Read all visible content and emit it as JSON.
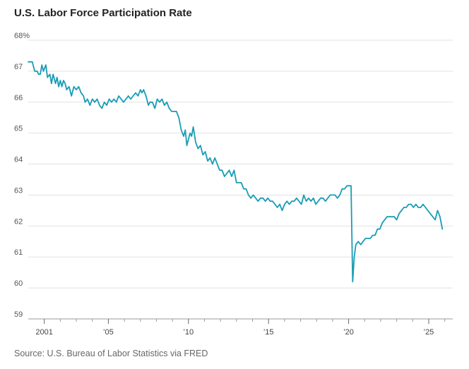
{
  "chart_data": {
    "type": "line",
    "title": "U.S. Labor Force Participation Rate",
    "source": "Source: U.S. Bureau of Labor Statistics via FRED",
    "ylim": [
      59,
      68
    ],
    "xlim": [
      2000.0,
      2026.5
    ],
    "y_ticks": [
      59,
      60,
      61,
      62,
      63,
      64,
      65,
      66,
      67,
      68
    ],
    "y_tick_labels": [
      "59",
      "60",
      "61",
      "62",
      "63",
      "64",
      "65",
      "66",
      "67",
      "68%"
    ],
    "x_ticks": [
      2001,
      2005,
      2010,
      2015,
      2020,
      2025
    ],
    "x_tick_labels": [
      "2001",
      "’05",
      "’10",
      "’15",
      "’20",
      "’25"
    ],
    "x_minor_ticks": [
      2002,
      2003,
      2004,
      2006,
      2007,
      2008,
      2009,
      2011,
      2012,
      2013,
      2014,
      2016,
      2017,
      2018,
      2019,
      2021,
      2022,
      2023,
      2024,
      2026
    ],
    "line_color": "#199cb5",
    "series": [
      {
        "name": "Labor force participation rate",
        "x": [
          2000.0,
          2000.25,
          2000.4,
          2000.55,
          2000.65,
          2000.75,
          2000.85,
          2000.95,
          2001.1,
          2001.2,
          2001.35,
          2001.45,
          2001.55,
          2001.7,
          2001.8,
          2001.9,
          2002.0,
          2002.1,
          2002.2,
          2002.3,
          2002.4,
          2002.55,
          2002.7,
          2002.85,
          2003.0,
          2003.15,
          2003.3,
          2003.45,
          2003.55,
          2003.7,
          2003.85,
          2004.0,
          2004.15,
          2004.3,
          2004.45,
          2004.6,
          2004.75,
          2004.9,
          2005.05,
          2005.2,
          2005.35,
          2005.5,
          2005.65,
          2005.8,
          2005.95,
          2006.1,
          2006.25,
          2006.4,
          2006.55,
          2006.7,
          2006.85,
          2007.0,
          2007.1,
          2007.2,
          2007.35,
          2007.5,
          2007.6,
          2007.75,
          2007.9,
          2008.05,
          2008.2,
          2008.35,
          2008.5,
          2008.65,
          2008.8,
          2008.95,
          2009.1,
          2009.25,
          2009.4,
          2009.55,
          2009.7,
          2009.8,
          2009.9,
          2010.0,
          2010.1,
          2010.2,
          2010.3,
          2010.45,
          2010.6,
          2010.75,
          2010.9,
          2011.05,
          2011.2,
          2011.35,
          2011.5,
          2011.65,
          2011.8,
          2011.95,
          2012.1,
          2012.25,
          2012.4,
          2012.55,
          2012.7,
          2012.85,
          2013.0,
          2013.15,
          2013.3,
          2013.45,
          2013.6,
          2013.75,
          2013.9,
          2014.05,
          2014.2,
          2014.35,
          2014.5,
          2014.65,
          2014.8,
          2014.95,
          2015.1,
          2015.25,
          2015.4,
          2015.55,
          2015.7,
          2015.85,
          2016.0,
          2016.15,
          2016.3,
          2016.45,
          2016.6,
          2016.75,
          2016.9,
          2017.05,
          2017.2,
          2017.35,
          2017.5,
          2017.65,
          2017.8,
          2017.95,
          2018.1,
          2018.25,
          2018.4,
          2018.55,
          2018.7,
          2018.85,
          2019.0,
          2019.15,
          2019.3,
          2019.45,
          2019.6,
          2019.75,
          2019.9,
          2020.05,
          2020.15,
          2020.25,
          2020.35,
          2020.45,
          2020.6,
          2020.75,
          2020.9,
          2021.05,
          2021.2,
          2021.35,
          2021.5,
          2021.65,
          2021.8,
          2021.95,
          2022.1,
          2022.25,
          2022.4,
          2022.55,
          2022.7,
          2022.85,
          2023.0,
          2023.15,
          2023.3,
          2023.45,
          2023.6,
          2023.75,
          2023.9,
          2024.05,
          2024.2,
          2024.35,
          2024.5,
          2024.65,
          2024.8,
          2024.95,
          2025.1,
          2025.25,
          2025.4,
          2025.55,
          2025.7,
          2025.85
        ],
        "values": [
          67.3,
          67.3,
          67.0,
          67.0,
          66.9,
          66.9,
          67.2,
          67.0,
          67.2,
          66.8,
          66.9,
          66.6,
          66.9,
          66.6,
          66.8,
          66.5,
          66.7,
          66.5,
          66.7,
          66.6,
          66.4,
          66.5,
          66.2,
          66.5,
          66.4,
          66.5,
          66.3,
          66.2,
          66.0,
          66.1,
          65.9,
          66.1,
          66.0,
          66.1,
          65.9,
          65.8,
          66.0,
          65.9,
          66.1,
          66.0,
          66.1,
          66.0,
          66.2,
          66.1,
          66.0,
          66.1,
          66.2,
          66.1,
          66.2,
          66.3,
          66.2,
          66.4,
          66.3,
          66.4,
          66.2,
          65.9,
          66.0,
          66.0,
          65.8,
          66.1,
          66.0,
          66.1,
          65.9,
          66.0,
          65.8,
          65.7,
          65.7,
          65.7,
          65.5,
          65.1,
          64.9,
          65.1,
          64.6,
          64.8,
          65.0,
          64.9,
          65.2,
          64.7,
          64.5,
          64.6,
          64.3,
          64.4,
          64.1,
          64.2,
          64.0,
          64.2,
          64.0,
          63.8,
          63.8,
          63.6,
          63.7,
          63.8,
          63.6,
          63.8,
          63.4,
          63.4,
          63.4,
          63.2,
          63.2,
          63.0,
          62.9,
          63.0,
          62.9,
          62.8,
          62.9,
          62.9,
          62.8,
          62.9,
          62.8,
          62.8,
          62.7,
          62.6,
          62.7,
          62.5,
          62.7,
          62.8,
          62.7,
          62.8,
          62.8,
          62.9,
          62.8,
          62.7,
          63.0,
          62.8,
          62.9,
          62.8,
          62.9,
          62.7,
          62.8,
          62.9,
          62.9,
          62.8,
          62.9,
          63.0,
          63.0,
          63.0,
          62.9,
          63.0,
          63.2,
          63.2,
          63.3,
          63.3,
          63.3,
          60.2,
          61.0,
          61.4,
          61.5,
          61.4,
          61.5,
          61.6,
          61.6,
          61.6,
          61.7,
          61.7,
          61.9,
          61.9,
          62.1,
          62.2,
          62.3,
          62.3,
          62.3,
          62.3,
          62.2,
          62.4,
          62.5,
          62.6,
          62.6,
          62.7,
          62.7,
          62.6,
          62.7,
          62.6,
          62.6,
          62.7,
          62.6,
          62.5,
          62.4,
          62.3,
          62.2,
          62.5,
          62.3,
          61.9
        ]
      }
    ]
  }
}
